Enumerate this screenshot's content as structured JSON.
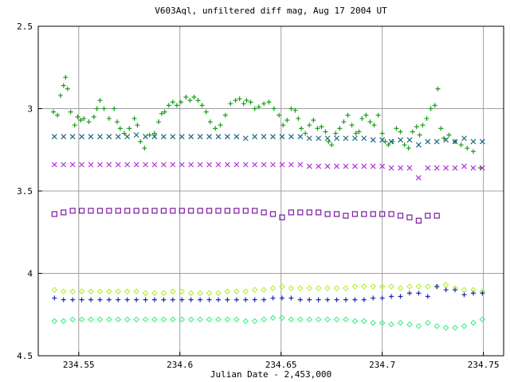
{
  "chart_data": {
    "type": "scatter",
    "title": "V603Aql, unfiltered diff mag, Aug 17 2004 UT",
    "xlabel": "Julian Date - 2,453,000",
    "ylabel": "",
    "xlim": [
      234.53,
      234.76
    ],
    "ylim": [
      4.5,
      2.5
    ],
    "y_reversed": true,
    "grid": true,
    "legend": "none",
    "xticks": [
      234.55,
      234.6,
      234.65,
      234.7,
      234.75
    ],
    "xtick_labels": [
      "234.55",
      "234.6",
      "234.65",
      "234.7",
      "234.75"
    ],
    "yticks": [
      2.5,
      3,
      3.5,
      4,
      4.5
    ],
    "ytick_labels": [
      "2.5",
      "3",
      "3.5",
      "4",
      "4.5"
    ],
    "series": [
      {
        "marker": "plus",
        "color": "#1a9f1a",
        "x": [
          234.5375,
          234.5395,
          234.541,
          234.5425,
          234.5435,
          234.5445,
          234.546,
          234.548,
          234.5495,
          234.551,
          234.5525,
          234.555,
          234.5575,
          234.559,
          234.5605,
          234.5625,
          234.565,
          234.5675,
          234.569,
          234.5705,
          234.5725,
          234.575,
          234.5775,
          234.579,
          234.5805,
          234.5825,
          234.585,
          234.5875,
          234.5895,
          234.591,
          234.5925,
          234.5945,
          234.5965,
          234.5985,
          234.6005,
          234.603,
          234.605,
          234.607,
          234.609,
          234.611,
          234.613,
          234.615,
          234.6175,
          234.62,
          234.6225,
          234.625,
          234.6275,
          234.6295,
          234.6315,
          234.633,
          234.635,
          234.637,
          234.639,
          234.6415,
          234.644,
          234.6465,
          234.649,
          234.651,
          234.653,
          234.655,
          234.657,
          234.6585,
          234.66,
          234.662,
          234.664,
          234.666,
          234.668,
          234.67,
          234.672,
          234.6735,
          234.675,
          234.677,
          234.679,
          234.681,
          234.683,
          234.685,
          234.687,
          234.6885,
          234.69,
          234.692,
          234.694,
          234.696,
          234.698,
          234.7,
          234.7015,
          234.703,
          234.705,
          234.707,
          234.709,
          234.711,
          234.713,
          234.715,
          234.717,
          234.7185,
          234.72,
          234.722,
          234.724,
          234.726,
          234.7275,
          234.729,
          234.7305,
          234.733,
          234.736,
          234.739,
          234.742,
          234.745,
          234.7485
        ],
        "y": [
          3.02,
          3.04,
          2.92,
          2.86,
          2.81,
          2.88,
          3.02,
          3.1,
          3.05,
          3.07,
          3.06,
          3.08,
          3.05,
          3.0,
          2.95,
          3.0,
          3.06,
          3.0,
          3.08,
          3.12,
          3.15,
          3.12,
          3.06,
          3.1,
          3.2,
          3.24,
          3.16,
          3.15,
          3.08,
          3.03,
          3.02,
          2.98,
          2.96,
          2.98,
          2.96,
          2.93,
          2.95,
          2.93,
          2.95,
          2.98,
          3.02,
          3.08,
          3.12,
          3.1,
          3.04,
          2.97,
          2.95,
          2.94,
          2.97,
          2.95,
          2.96,
          3.0,
          2.99,
          2.97,
          2.96,
          3.0,
          3.04,
          3.1,
          3.07,
          3.0,
          3.01,
          3.06,
          3.12,
          3.15,
          3.1,
          3.07,
          3.12,
          3.11,
          3.14,
          3.2,
          3.22,
          3.15,
          3.12,
          3.08,
          3.04,
          3.1,
          3.15,
          3.14,
          3.06,
          3.04,
          3.08,
          3.1,
          3.04,
          3.15,
          3.2,
          3.22,
          3.2,
          3.12,
          3.14,
          3.22,
          3.24,
          3.14,
          3.11,
          3.16,
          3.1,
          3.06,
          3.0,
          2.98,
          2.88,
          3.12,
          3.18,
          3.16,
          3.2,
          3.22,
          3.24,
          3.26,
          3.36
        ]
      },
      {
        "marker": "x",
        "color": "#1a6680",
        "x": [
          234.538,
          234.5425,
          234.547,
          234.5515,
          234.556,
          234.5605,
          234.565,
          234.5695,
          234.574,
          234.5785,
          234.583,
          234.5875,
          234.592,
          234.5965,
          234.601,
          234.6055,
          234.61,
          234.6145,
          234.619,
          234.6235,
          234.628,
          234.6325,
          234.637,
          234.6415,
          234.646,
          234.6505,
          234.655,
          234.6595,
          234.664,
          234.6685,
          234.673,
          234.6775,
          234.682,
          234.6865,
          234.691,
          234.6955,
          234.7,
          234.7045,
          234.709,
          234.7135,
          234.718,
          234.7225,
          234.727,
          234.7315,
          234.736,
          234.7405,
          234.745,
          234.7495
        ],
        "y": [
          3.17,
          3.17,
          3.17,
          3.17,
          3.17,
          3.17,
          3.17,
          3.17,
          3.17,
          3.16,
          3.17,
          3.17,
          3.17,
          3.17,
          3.17,
          3.17,
          3.17,
          3.17,
          3.17,
          3.17,
          3.17,
          3.18,
          3.17,
          3.17,
          3.17,
          3.17,
          3.17,
          3.17,
          3.18,
          3.18,
          3.18,
          3.18,
          3.18,
          3.18,
          3.18,
          3.19,
          3.19,
          3.2,
          3.19,
          3.19,
          3.22,
          3.2,
          3.2,
          3.19,
          3.2,
          3.18,
          3.2,
          3.2
        ]
      },
      {
        "marker": "x",
        "color": "#b030d8",
        "x": [
          234.538,
          234.5425,
          234.547,
          234.5515,
          234.556,
          234.5605,
          234.565,
          234.5695,
          234.574,
          234.5785,
          234.583,
          234.5875,
          234.592,
          234.5965,
          234.601,
          234.6055,
          234.61,
          234.6145,
          234.619,
          234.6235,
          234.628,
          234.6325,
          234.637,
          234.6415,
          234.646,
          234.6505,
          234.655,
          234.6595,
          234.664,
          234.6685,
          234.673,
          234.6775,
          234.682,
          234.6865,
          234.691,
          234.6955,
          234.7,
          234.7045,
          234.709,
          234.7135,
          234.718,
          234.7225,
          234.727,
          234.7315,
          234.736,
          234.7405,
          234.745,
          234.7495
        ],
        "y": [
          3.34,
          3.34,
          3.34,
          3.34,
          3.34,
          3.34,
          3.34,
          3.34,
          3.34,
          3.34,
          3.34,
          3.34,
          3.34,
          3.34,
          3.34,
          3.34,
          3.34,
          3.34,
          3.34,
          3.34,
          3.34,
          3.34,
          3.34,
          3.34,
          3.34,
          3.34,
          3.34,
          3.34,
          3.35,
          3.35,
          3.35,
          3.35,
          3.35,
          3.35,
          3.35,
          3.35,
          3.35,
          3.36,
          3.36,
          3.36,
          3.42,
          3.36,
          3.36,
          3.36,
          3.36,
          3.35,
          3.36,
          3.36
        ]
      },
      {
        "marker": "square",
        "color": "#7a1a9f",
        "x": [
          234.538,
          234.5425,
          234.547,
          234.5515,
          234.556,
          234.5605,
          234.565,
          234.5695,
          234.574,
          234.5785,
          234.583,
          234.5875,
          234.592,
          234.5965,
          234.601,
          234.6055,
          234.61,
          234.6145,
          234.619,
          234.6235,
          234.628,
          234.6325,
          234.637,
          234.6415,
          234.646,
          234.6505,
          234.655,
          234.6595,
          234.664,
          234.6685,
          234.673,
          234.6775,
          234.682,
          234.6865,
          234.691,
          234.6955,
          234.7,
          234.7045,
          234.709,
          234.7135,
          234.718,
          234.7225,
          234.727
        ],
        "y": [
          3.64,
          3.63,
          3.62,
          3.62,
          3.62,
          3.62,
          3.62,
          3.62,
          3.62,
          3.62,
          3.62,
          3.62,
          3.62,
          3.62,
          3.62,
          3.62,
          3.62,
          3.62,
          3.62,
          3.62,
          3.62,
          3.62,
          3.62,
          3.63,
          3.64,
          3.66,
          3.63,
          3.63,
          3.63,
          3.63,
          3.64,
          3.64,
          3.65,
          3.64,
          3.64,
          3.64,
          3.64,
          3.64,
          3.65,
          3.66,
          3.68,
          3.65,
          3.65
        ]
      },
      {
        "marker": "diamond",
        "color": "#b8f040",
        "x": [
          234.538,
          234.5425,
          234.547,
          234.5515,
          234.556,
          234.5605,
          234.565,
          234.5695,
          234.574,
          234.5785,
          234.583,
          234.5875,
          234.592,
          234.5965,
          234.601,
          234.6055,
          234.61,
          234.6145,
          234.619,
          234.6235,
          234.628,
          234.6325,
          234.637,
          234.6415,
          234.646,
          234.6505,
          234.655,
          234.6595,
          234.664,
          234.6685,
          234.673,
          234.6775,
          234.682,
          234.6865,
          234.691,
          234.6955,
          234.7,
          234.7045,
          234.709,
          234.7135,
          234.718,
          234.7225,
          234.727,
          234.7315,
          234.736,
          234.7405,
          234.745,
          234.7495
        ],
        "y": [
          4.1,
          4.11,
          4.11,
          4.11,
          4.11,
          4.11,
          4.11,
          4.11,
          4.11,
          4.11,
          4.12,
          4.12,
          4.12,
          4.11,
          4.11,
          4.12,
          4.12,
          4.12,
          4.12,
          4.11,
          4.11,
          4.11,
          4.1,
          4.1,
          4.09,
          4.08,
          4.09,
          4.09,
          4.09,
          4.09,
          4.09,
          4.09,
          4.09,
          4.08,
          4.08,
          4.08,
          4.08,
          4.08,
          4.09,
          4.08,
          4.08,
          4.08,
          4.08,
          4.07,
          4.09,
          4.1,
          4.1,
          4.11
        ]
      },
      {
        "marker": "plus",
        "color": "#1a2ab0",
        "x": [
          234.538,
          234.5425,
          234.547,
          234.5515,
          234.556,
          234.5605,
          234.565,
          234.5695,
          234.574,
          234.5785,
          234.583,
          234.5875,
          234.592,
          234.5965,
          234.601,
          234.6055,
          234.61,
          234.6145,
          234.619,
          234.6235,
          234.628,
          234.6325,
          234.637,
          234.6415,
          234.646,
          234.6505,
          234.655,
          234.6595,
          234.664,
          234.6685,
          234.673,
          234.6775,
          234.682,
          234.6865,
          234.691,
          234.6955,
          234.7,
          234.7045,
          234.709,
          234.7135,
          234.718,
          234.7225,
          234.727,
          234.7315,
          234.736,
          234.7405,
          234.745,
          234.7495
        ],
        "y": [
          4.15,
          4.16,
          4.16,
          4.16,
          4.16,
          4.16,
          4.16,
          4.16,
          4.16,
          4.16,
          4.16,
          4.16,
          4.16,
          4.16,
          4.16,
          4.16,
          4.16,
          4.16,
          4.16,
          4.16,
          4.16,
          4.16,
          4.16,
          4.16,
          4.15,
          4.15,
          4.15,
          4.16,
          4.16,
          4.16,
          4.16,
          4.16,
          4.16,
          4.16,
          4.16,
          4.15,
          4.15,
          4.14,
          4.14,
          4.12,
          4.12,
          4.14,
          4.08,
          4.1,
          4.1,
          4.13,
          4.12,
          4.12
        ]
      },
      {
        "marker": "diamond",
        "color": "#50f090",
        "x": [
          234.538,
          234.5425,
          234.547,
          234.5515,
          234.556,
          234.5605,
          234.565,
          234.5695,
          234.574,
          234.5785,
          234.583,
          234.5875,
          234.592,
          234.5965,
          234.601,
          234.6055,
          234.61,
          234.6145,
          234.619,
          234.6235,
          234.628,
          234.6325,
          234.637,
          234.6415,
          234.646,
          234.6505,
          234.655,
          234.6595,
          234.664,
          234.6685,
          234.673,
          234.6775,
          234.682,
          234.6865,
          234.691,
          234.6955,
          234.7,
          234.7045,
          234.709,
          234.7135,
          234.718,
          234.7225,
          234.727,
          234.7315,
          234.736,
          234.7405,
          234.745,
          234.7495
        ],
        "y": [
          4.29,
          4.29,
          4.28,
          4.28,
          4.28,
          4.28,
          4.28,
          4.28,
          4.28,
          4.28,
          4.28,
          4.28,
          4.28,
          4.28,
          4.28,
          4.28,
          4.28,
          4.28,
          4.28,
          4.28,
          4.28,
          4.29,
          4.29,
          4.28,
          4.27,
          4.27,
          4.28,
          4.28,
          4.28,
          4.28,
          4.28,
          4.28,
          4.28,
          4.29,
          4.29,
          4.3,
          4.3,
          4.31,
          4.3,
          4.31,
          4.32,
          4.3,
          4.32,
          4.33,
          4.33,
          4.32,
          4.3,
          4.28
        ]
      }
    ]
  }
}
